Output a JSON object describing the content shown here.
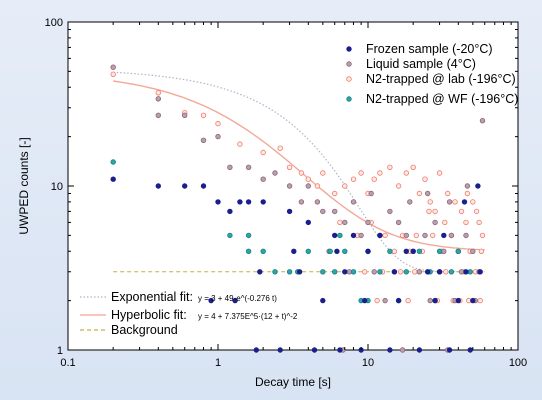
{
  "chart_data": {
    "type": "scatter",
    "xlabel": "Decay time [s]",
    "ylabel": "UWPED counts [-]",
    "xscale": "log",
    "yscale": "log",
    "xlim": [
      0.1,
      100
    ],
    "ylim": [
      1,
      100
    ],
    "x_ticks": [
      "0.1",
      "1",
      "10",
      "100"
    ],
    "y_ticks": [
      "1",
      "10",
      "100"
    ],
    "grid": false,
    "legend_position": "top-right",
    "series": [
      {
        "name": "Frozen sample (-20°C)",
        "color": "#1a1f8c",
        "points": [
          [
            0.2,
            11
          ],
          [
            0.4,
            10
          ],
          [
            0.6,
            10
          ],
          [
            0.8,
            10
          ],
          [
            1.0,
            8
          ],
          [
            1.2,
            7
          ],
          [
            1.4,
            8
          ],
          [
            1.6,
            8
          ],
          [
            2.0,
            8
          ],
          [
            3.0,
            7
          ],
          [
            4.0,
            6
          ],
          [
            6.0,
            5
          ],
          [
            8.0,
            5
          ],
          [
            10.0,
            4
          ],
          [
            12.0,
            5
          ],
          [
            15.0,
            3
          ],
          [
            20.0,
            4
          ],
          [
            25.0,
            3
          ],
          [
            30.0,
            3
          ],
          [
            40.0,
            2
          ],
          [
            50.0,
            2
          ],
          [
            1.8,
            1
          ],
          [
            2.6,
            1
          ],
          [
            4.4,
            1
          ],
          [
            6.5,
            1
          ],
          [
            9.0,
            1
          ],
          [
            14.0,
            1
          ],
          [
            22.0,
            1
          ],
          [
            35.0,
            1
          ],
          [
            48.0,
            1
          ],
          [
            0.9,
            2
          ],
          [
            1.3,
            2
          ],
          [
            1.9,
            3
          ],
          [
            3.5,
            3
          ],
          [
            5.0,
            2
          ],
          [
            7.0,
            3
          ],
          [
            9.5,
            2
          ],
          [
            16.0,
            2
          ],
          [
            28.0,
            2
          ],
          [
            45.0,
            3
          ],
          [
            56.0,
            3
          ],
          [
            3.2,
            4
          ],
          [
            6.2,
            4
          ],
          [
            18.0,
            4
          ],
          [
            32.0,
            5
          ],
          [
            44.0,
            8
          ],
          [
            54.0,
            10
          ]
        ]
      },
      {
        "name": "Liquid sample (4°C)",
        "color": "#8a6478",
        "points": [
          [
            0.2,
            53
          ],
          [
            0.4,
            34
          ],
          [
            0.4,
            27
          ],
          [
            0.6,
            27
          ],
          [
            0.8,
            19
          ],
          [
            1.0,
            20
          ],
          [
            1.2,
            13
          ],
          [
            1.6,
            13
          ],
          [
            2.0,
            11
          ],
          [
            2.4,
            12
          ],
          [
            3.0,
            10
          ],
          [
            3.6,
            8
          ],
          [
            4.0,
            10
          ],
          [
            4.6,
            8
          ],
          [
            5.0,
            7
          ],
          [
            6.0,
            7
          ],
          [
            7.0,
            6
          ],
          [
            8.0,
            8
          ],
          [
            9.0,
            5
          ],
          [
            10.0,
            6
          ],
          [
            12.0,
            5
          ],
          [
            14.0,
            7
          ],
          [
            16.0,
            6
          ],
          [
            18.0,
            5
          ],
          [
            20.0,
            4
          ],
          [
            24.0,
            5
          ],
          [
            28.0,
            6
          ],
          [
            32.0,
            4
          ],
          [
            36.0,
            5
          ],
          [
            40.0,
            4
          ],
          [
            45.0,
            5
          ],
          [
            50.0,
            4
          ],
          [
            55.0,
            3
          ],
          [
            58.0,
            25
          ],
          [
            5.5,
            4
          ],
          [
            7.5,
            3
          ],
          [
            11.0,
            3
          ],
          [
            15.0,
            3
          ],
          [
            22.0,
            3
          ],
          [
            30.0,
            3
          ],
          [
            42.0,
            3
          ],
          [
            13.0,
            2
          ],
          [
            26.0,
            2
          ],
          [
            38.0,
            2
          ],
          [
            52.0,
            2
          ],
          [
            6.8,
            1
          ],
          [
            17.0,
            1
          ],
          [
            34.0,
            1
          ],
          [
            10.5,
            9
          ],
          [
            19.0,
            8
          ],
          [
            25.0,
            9
          ],
          [
            35.0,
            8
          ],
          [
            46.0,
            10
          ]
        ]
      },
      {
        "name": "N2-trapped @ lab (-196°C)",
        "color": "#f07a6a",
        "points": [
          [
            0.2,
            48
          ],
          [
            0.4,
            37
          ],
          [
            0.6,
            28
          ],
          [
            0.8,
            27
          ],
          [
            1.0,
            24
          ],
          [
            1.4,
            18
          ],
          [
            2.0,
            16
          ],
          [
            2.6,
            17
          ],
          [
            3.0,
            13
          ],
          [
            3.6,
            12
          ],
          [
            4.0,
            11
          ],
          [
            4.6,
            10
          ],
          [
            5.0,
            12
          ],
          [
            6.0,
            9
          ],
          [
            7.0,
            10
          ],
          [
            8.0,
            11
          ],
          [
            9.0,
            12
          ],
          [
            10.0,
            9
          ],
          [
            11.0,
            11
          ],
          [
            12.0,
            12
          ],
          [
            14.0,
            13
          ],
          [
            16.0,
            10
          ],
          [
            18.0,
            12
          ],
          [
            20.0,
            13
          ],
          [
            22.0,
            9
          ],
          [
            24.0,
            11
          ],
          [
            26.0,
            8
          ],
          [
            28.0,
            7
          ],
          [
            30.0,
            12
          ],
          [
            34.0,
            9
          ],
          [
            38.0,
            8
          ],
          [
            42.0,
            7
          ],
          [
            46.0,
            9
          ],
          [
            50.0,
            8
          ],
          [
            55.0,
            6
          ],
          [
            58.0,
            5
          ],
          [
            6.5,
            6
          ],
          [
            8.5,
            5
          ],
          [
            10.5,
            6
          ],
          [
            13.0,
            5
          ],
          [
            15.0,
            4
          ],
          [
            17.0,
            5
          ],
          [
            19.0,
            4
          ],
          [
            21.0,
            5
          ],
          [
            23.0,
            4
          ],
          [
            27.0,
            5
          ],
          [
            31.0,
            4
          ],
          [
            36.0,
            5
          ],
          [
            40.0,
            4
          ],
          [
            44.0,
            3
          ],
          [
            48.0,
            4
          ],
          [
            52.0,
            3
          ],
          [
            56.0,
            2
          ],
          [
            9.5,
            3
          ],
          [
            12.5,
            3
          ],
          [
            16.5,
            3
          ],
          [
            20.5,
            3
          ],
          [
            25.0,
            3
          ],
          [
            33.0,
            3
          ],
          [
            41.0,
            2
          ],
          [
            47.0,
            2
          ],
          [
            11.5,
            2
          ],
          [
            18.5,
            2
          ],
          [
            29.0,
            2
          ],
          [
            37.0,
            2
          ],
          [
            53.0,
            7
          ],
          [
            57.0,
            4
          ],
          [
            25.5,
            7
          ],
          [
            32.5,
            6
          ],
          [
            45.0,
            6
          ]
        ]
      },
      {
        "name": "N2-trapped @ WF (-196°C)",
        "color": "#2aa6a8",
        "points": [
          [
            0.2,
            14
          ],
          [
            1.2,
            5
          ],
          [
            1.6,
            4
          ],
          [
            1.6,
            5
          ],
          [
            2.0,
            4
          ],
          [
            2.4,
            3
          ],
          [
            3.0,
            3
          ],
          [
            3.4,
            3
          ],
          [
            4.0,
            4
          ],
          [
            5.0,
            3
          ],
          [
            5.6,
            4
          ],
          [
            6.0,
            3
          ],
          [
            7.0,
            4
          ],
          [
            8.0,
            3
          ],
          [
            9.0,
            2
          ],
          [
            10.0,
            4
          ],
          [
            12.0,
            3
          ],
          [
            14.0,
            4
          ],
          [
            18.0,
            3
          ],
          [
            22.0,
            4
          ],
          [
            26.0,
            3
          ],
          [
            30.0,
            4
          ],
          [
            36.0,
            3
          ],
          [
            40.0,
            4
          ],
          [
            48.0,
            3
          ],
          [
            10.0,
            2
          ],
          [
            16.0,
            2
          ],
          [
            28.0,
            2
          ],
          [
            6.5,
            5
          ]
        ]
      }
    ],
    "fits": [
      {
        "name": "Exponential fit:",
        "equation": "y = 3 + 49·e^(-0.276 t)",
        "color": "#a8b8c8",
        "style": "dotted"
      },
      {
        "name": "Hyperbolic fit:",
        "equation": "y = 4 + 7.375E^5·(12 + t)^-2",
        "color": "#f3a898",
        "style": "solid"
      },
      {
        "name": "Background",
        "y": 3,
        "color": "#c0b24a",
        "style": "dashed"
      }
    ]
  }
}
